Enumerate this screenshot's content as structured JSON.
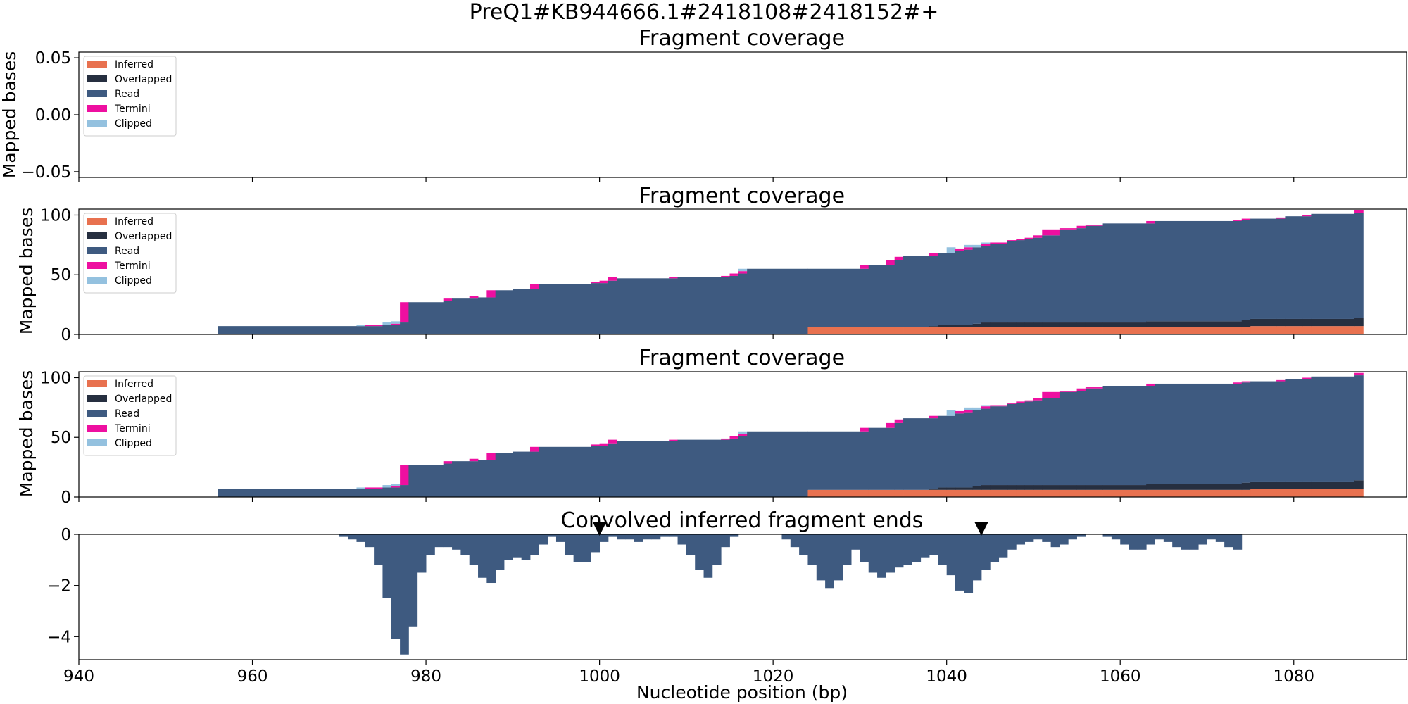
{
  "figure": {
    "title": "PreQ1#KB944666.1#2418108#2418152#+"
  },
  "legend_labels": [
    "Inferred",
    "Overlapped",
    "Read",
    "Termini",
    "Clipped"
  ],
  "colors": {
    "Inferred": "#e8714f",
    "Overlapped": "#262f40",
    "Read": "#3e5a80",
    "Termini": "#ee0fa0",
    "Clipped": "#94c1df",
    "conv": "#3e5a80",
    "marker": "#000000"
  },
  "chart_data": [
    {
      "type": "area",
      "title": "Fragment coverage",
      "ylabel": "Mapped bases",
      "xlim": [
        940,
        1093
      ],
      "ylim": [
        -0.055,
        0.055
      ],
      "yticks": [
        0.05,
        0.0,
        -0.05
      ],
      "ytick_labels": [
        "0.05",
        "0.00",
        "−0.05"
      ],
      "legend": [
        "Inferred",
        "Overlapped",
        "Read",
        "Termini",
        "Clipped"
      ],
      "legend_position": "upper-left",
      "series": []
    },
    {
      "type": "area",
      "title": "Fragment coverage",
      "ylabel": "Mapped bases",
      "xlim": [
        940,
        1093
      ],
      "ylim": [
        0,
        105
      ],
      "yticks": [
        0,
        50,
        100
      ],
      "ytick_labels": [
        "0",
        "50",
        "100"
      ],
      "legend": [
        "Inferred",
        "Overlapped",
        "Read",
        "Termini",
        "Clipped"
      ],
      "legend_position": "upper-left",
      "stacked": true,
      "segments": [
        {
          "x": [
            956,
            972
          ],
          "Inferred": 0,
          "Overlapped": 0,
          "Read": 7,
          "Termini": 0,
          "Clipped": 0
        },
        {
          "x": [
            972,
            973
          ],
          "Inferred": 0,
          "Overlapped": 0,
          "Read": 7,
          "Termini": 0,
          "Clipped": 1
        },
        {
          "x": [
            973,
            975
          ],
          "Inferred": 0,
          "Overlapped": 0,
          "Read": 7,
          "Termini": 1,
          "Clipped": 0
        },
        {
          "x": [
            975,
            976
          ],
          "Inferred": 0,
          "Overlapped": 0,
          "Read": 8,
          "Termini": 0,
          "Clipped": 2
        },
        {
          "x": [
            976,
            977
          ],
          "Inferred": 0,
          "Overlapped": 0,
          "Read": 8,
          "Termini": 1,
          "Clipped": 2
        },
        {
          "x": [
            977,
            978
          ],
          "Inferred": 0,
          "Overlapped": 0,
          "Read": 10,
          "Termini": 17,
          "Clipped": 0
        },
        {
          "x": [
            978,
            982
          ],
          "Inferred": 0,
          "Overlapped": 0,
          "Read": 27,
          "Termini": 0,
          "Clipped": 0
        },
        {
          "x": [
            982,
            983
          ],
          "Inferred": 0,
          "Overlapped": 0,
          "Read": 28,
          "Termini": 2,
          "Clipped": 0
        },
        {
          "x": [
            983,
            985
          ],
          "Inferred": 0,
          "Overlapped": 0,
          "Read": 30,
          "Termini": 0,
          "Clipped": 0
        },
        {
          "x": [
            985,
            986
          ],
          "Inferred": 0,
          "Overlapped": 0,
          "Read": 30,
          "Termini": 2,
          "Clipped": 0
        },
        {
          "x": [
            986,
            987
          ],
          "Inferred": 0,
          "Overlapped": 0,
          "Read": 31,
          "Termini": 0,
          "Clipped": 0
        },
        {
          "x": [
            987,
            988
          ],
          "Inferred": 0,
          "Overlapped": 0,
          "Read": 31,
          "Termini": 6,
          "Clipped": 0
        },
        {
          "x": [
            988,
            990
          ],
          "Inferred": 0,
          "Overlapped": 0,
          "Read": 37,
          "Termini": 0,
          "Clipped": 0
        },
        {
          "x": [
            990,
            992
          ],
          "Inferred": 0,
          "Overlapped": 0,
          "Read": 38,
          "Termini": 0,
          "Clipped": 0
        },
        {
          "x": [
            992,
            993
          ],
          "Inferred": 0,
          "Overlapped": 0,
          "Read": 38,
          "Termini": 4,
          "Clipped": 0
        },
        {
          "x": [
            993,
            999
          ],
          "Inferred": 0,
          "Overlapped": 0,
          "Read": 42,
          "Termini": 0,
          "Clipped": 0
        },
        {
          "x": [
            999,
            1000
          ],
          "Inferred": 0,
          "Overlapped": 0,
          "Read": 43,
          "Termini": 1,
          "Clipped": 0
        },
        {
          "x": [
            1000,
            1001
          ],
          "Inferred": 0,
          "Overlapped": 0,
          "Read": 43,
          "Termini": 2,
          "Clipped": 0
        },
        {
          "x": [
            1001,
            1002
          ],
          "Inferred": 0,
          "Overlapped": 0,
          "Read": 45,
          "Termini": 3,
          "Clipped": 0
        },
        {
          "x": [
            1002,
            1008
          ],
          "Inferred": 0,
          "Overlapped": 0,
          "Read": 47,
          "Termini": 0,
          "Clipped": 0
        },
        {
          "x": [
            1008,
            1009
          ],
          "Inferred": 0,
          "Overlapped": 0,
          "Read": 47,
          "Termini": 1,
          "Clipped": 0
        },
        {
          "x": [
            1009,
            1014
          ],
          "Inferred": 0,
          "Overlapped": 0,
          "Read": 48,
          "Termini": 0,
          "Clipped": 0
        },
        {
          "x": [
            1014,
            1015
          ],
          "Inferred": 0,
          "Overlapped": 0,
          "Read": 48,
          "Termini": 1,
          "Clipped": 0
        },
        {
          "x": [
            1015,
            1016
          ],
          "Inferred": 0,
          "Overlapped": 0,
          "Read": 49,
          "Termini": 2,
          "Clipped": 0
        },
        {
          "x": [
            1016,
            1017
          ],
          "Inferred": 0,
          "Overlapped": 0,
          "Read": 51,
          "Termini": 2,
          "Clipped": 2
        },
        {
          "x": [
            1017,
            1024
          ],
          "Inferred": 0,
          "Overlapped": 0,
          "Read": 55,
          "Termini": 0,
          "Clipped": 0
        },
        {
          "x": [
            1024,
            1030
          ],
          "Inferred": 6,
          "Overlapped": 0,
          "Read": 49,
          "Termini": 0,
          "Clipped": 0
        },
        {
          "x": [
            1030,
            1031
          ],
          "Inferred": 6,
          "Overlapped": 0,
          "Read": 49,
          "Termini": 3,
          "Clipped": 0
        },
        {
          "x": [
            1031,
            1033
          ],
          "Inferred": 6,
          "Overlapped": 0,
          "Read": 52,
          "Termini": 0,
          "Clipped": 0
        },
        {
          "x": [
            1033,
            1034
          ],
          "Inferred": 6,
          "Overlapped": 0,
          "Read": 52,
          "Termini": 4,
          "Clipped": 0
        },
        {
          "x": [
            1034,
            1035
          ],
          "Inferred": 6,
          "Overlapped": 0,
          "Read": 56,
          "Termini": 3,
          "Clipped": 0
        },
        {
          "x": [
            1035,
            1038
          ],
          "Inferred": 6,
          "Overlapped": 0,
          "Read": 60,
          "Termini": 0,
          "Clipped": 0
        },
        {
          "x": [
            1038,
            1039
          ],
          "Inferred": 6,
          "Overlapped": 1,
          "Read": 59,
          "Termini": 2,
          "Clipped": 0
        },
        {
          "x": [
            1039,
            1040
          ],
          "Inferred": 6,
          "Overlapped": 2,
          "Read": 60,
          "Termini": 0,
          "Clipped": 0
        },
        {
          "x": [
            1040,
            1041
          ],
          "Inferred": 6,
          "Overlapped": 2,
          "Read": 60,
          "Termini": 0,
          "Clipped": 5
        },
        {
          "x": [
            1041,
            1042
          ],
          "Inferred": 6,
          "Overlapped": 2,
          "Read": 62,
          "Termini": 2,
          "Clipped": 0
        },
        {
          "x": [
            1042,
            1043
          ],
          "Inferred": 6,
          "Overlapped": 2,
          "Read": 63,
          "Termini": 2,
          "Clipped": 2
        },
        {
          "x": [
            1043,
            1044
          ],
          "Inferred": 6,
          "Overlapped": 3,
          "Read": 64,
          "Termini": 0,
          "Clipped": 2
        },
        {
          "x": [
            1044,
            1045
          ],
          "Inferred": 6,
          "Overlapped": 4,
          "Read": 64,
          "Termini": 2,
          "Clipped": 1
        },
        {
          "x": [
            1045,
            1047
          ],
          "Inferred": 6,
          "Overlapped": 4,
          "Read": 66,
          "Termini": 1,
          "Clipped": 0
        },
        {
          "x": [
            1047,
            1048
          ],
          "Inferred": 6,
          "Overlapped": 4,
          "Read": 68,
          "Termini": 1,
          "Clipped": 0
        },
        {
          "x": [
            1048,
            1049
          ],
          "Inferred": 6,
          "Overlapped": 4,
          "Read": 69,
          "Termini": 1,
          "Clipped": 0
        },
        {
          "x": [
            1049,
            1050
          ],
          "Inferred": 6,
          "Overlapped": 4,
          "Read": 70,
          "Termini": 1,
          "Clipped": 0
        },
        {
          "x": [
            1050,
            1051
          ],
          "Inferred": 6,
          "Overlapped": 4,
          "Read": 71,
          "Termini": 2,
          "Clipped": 0
        },
        {
          "x": [
            1051,
            1053
          ],
          "Inferred": 6,
          "Overlapped": 4,
          "Read": 73,
          "Termini": 5,
          "Clipped": 0
        },
        {
          "x": [
            1053,
            1055
          ],
          "Inferred": 6,
          "Overlapped": 4,
          "Read": 78,
          "Termini": 1,
          "Clipped": 0
        },
        {
          "x": [
            1055,
            1056
          ],
          "Inferred": 6,
          "Overlapped": 4,
          "Read": 79,
          "Termini": 2,
          "Clipped": 0
        },
        {
          "x": [
            1056,
            1058
          ],
          "Inferred": 6,
          "Overlapped": 4,
          "Read": 81,
          "Termini": 1,
          "Clipped": 0
        },
        {
          "x": [
            1058,
            1063
          ],
          "Inferred": 6,
          "Overlapped": 4,
          "Read": 83,
          "Termini": 0,
          "Clipped": 0
        },
        {
          "x": [
            1063,
            1064
          ],
          "Inferred": 6,
          "Overlapped": 5,
          "Read": 82,
          "Termini": 2,
          "Clipped": 0
        },
        {
          "x": [
            1064,
            1073
          ],
          "Inferred": 6,
          "Overlapped": 5,
          "Read": 84,
          "Termini": 0,
          "Clipped": 0
        },
        {
          "x": [
            1073,
            1074
          ],
          "Inferred": 6,
          "Overlapped": 5,
          "Read": 84,
          "Termini": 1,
          "Clipped": 0
        },
        {
          "x": [
            1074,
            1075
          ],
          "Inferred": 6,
          "Overlapped": 6,
          "Read": 84,
          "Termini": 1,
          "Clipped": 0
        },
        {
          "x": [
            1075,
            1078
          ],
          "Inferred": 7,
          "Overlapped": 6,
          "Read": 84,
          "Termini": 0,
          "Clipped": 0
        },
        {
          "x": [
            1078,
            1079
          ],
          "Inferred": 7,
          "Overlapped": 6,
          "Read": 84,
          "Termini": 1,
          "Clipped": 0
        },
        {
          "x": [
            1079,
            1081
          ],
          "Inferred": 7,
          "Overlapped": 6,
          "Read": 86,
          "Termini": 0,
          "Clipped": 0
        },
        {
          "x": [
            1081,
            1082
          ],
          "Inferred": 7,
          "Overlapped": 6,
          "Read": 86,
          "Termini": 1,
          "Clipped": 0
        },
        {
          "x": [
            1082,
            1087
          ],
          "Inferred": 7,
          "Overlapped": 6,
          "Read": 88,
          "Termini": 0,
          "Clipped": 0
        },
        {
          "x": [
            1087,
            1088
          ],
          "Inferred": 7,
          "Overlapped": 7,
          "Read": 88,
          "Termini": 2,
          "Clipped": 0
        }
      ]
    },
    {
      "type": "area",
      "title": "Fragment coverage",
      "ylabel": "Mapped bases",
      "xlim": [
        940,
        1093
      ],
      "ylim": [
        0,
        105
      ],
      "yticks": [
        0,
        50,
        100
      ],
      "ytick_labels": [
        "0",
        "50",
        "100"
      ],
      "legend": [
        "Inferred",
        "Overlapped",
        "Read",
        "Termini",
        "Clipped"
      ],
      "legend_position": "upper-left",
      "stacked": true,
      "segments": "same as panel 2"
    },
    {
      "type": "bar",
      "title": "Convolved inferred fragment ends",
      "xlabel": "Nucleotide position (bp)",
      "xlim": [
        940,
        1093
      ],
      "ylim": [
        -4.9,
        0
      ],
      "yticks": [
        0,
        -2,
        -4
      ],
      "ytick_labels": [
        "0",
        "−2",
        "−4"
      ],
      "xticks": [
        940,
        960,
        980,
        1000,
        1020,
        1040,
        1060,
        1080
      ],
      "xtick_labels": [
        "940",
        "960",
        "980",
        "1000",
        "1020",
        "1040",
        "1060",
        "1080"
      ],
      "x_start": 970,
      "values": [
        -0.1,
        -0.2,
        -0.3,
        -0.5,
        -1.2,
        -2.5,
        -4.1,
        -4.7,
        -3.6,
        -1.5,
        -0.8,
        -0.5,
        -0.5,
        -0.6,
        -0.8,
        -1.2,
        -1.7,
        -1.9,
        -1.4,
        -1.0,
        -0.9,
        -1.0,
        -0.8,
        -0.4,
        -0.1,
        -0.3,
        -0.8,
        -1.1,
        -1.1,
        -0.7,
        -0.3,
        -0.1,
        -0.2,
        -0.2,
        -0.3,
        -0.2,
        -0.2,
        -0.1,
        -0.1,
        -0.4,
        -0.8,
        -1.4,
        -1.7,
        -1.2,
        -0.5,
        -0.1,
        0,
        0,
        0,
        0,
        0,
        -0.2,
        -0.5,
        -0.8,
        -1.2,
        -1.8,
        -2.1,
        -1.8,
        -1.2,
        -0.6,
        -1.1,
        -1.5,
        -1.7,
        -1.5,
        -1.3,
        -1.2,
        -1.1,
        -0.9,
        -0.8,
        -1.2,
        -1.6,
        -2.2,
        -2.3,
        -1.8,
        -1.4,
        -1.1,
        -0.9,
        -0.6,
        -0.4,
        -0.3,
        -0.2,
        -0.3,
        -0.5,
        -0.4,
        -0.2,
        -0.1,
        0,
        0,
        -0.1,
        -0.2,
        -0.4,
        -0.6,
        -0.6,
        -0.4,
        -0.2,
        -0.3,
        -0.5,
        -0.6,
        -0.6,
        -0.4,
        -0.2,
        -0.3,
        -0.5,
        -0.6
      ]
    }
  ],
  "markers": {
    "shape": "downward-triangle",
    "x": [
      1000,
      1044
    ]
  }
}
